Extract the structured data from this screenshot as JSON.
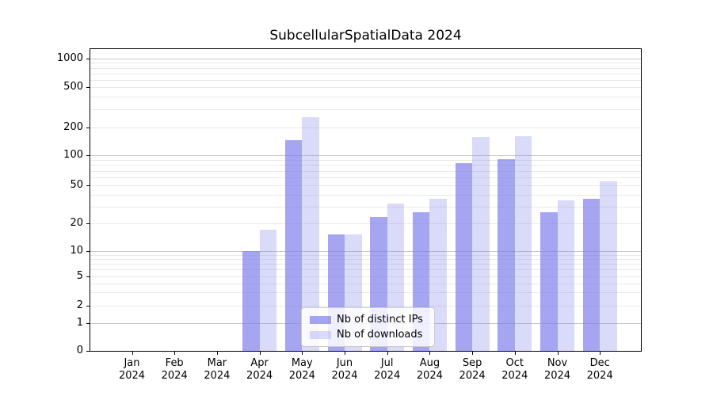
{
  "title": "SubcellularSpatialData 2024",
  "accent_color": "#7a7aeb",
  "chart_data": {
    "type": "bar",
    "title": "SubcellularSpatialData 2024",
    "xlabel": "",
    "ylabel": "",
    "yscale": "symlog",
    "grid": "both-horizontal",
    "legend_position": "lower-center-inside",
    "categories": [
      "Jan 2024",
      "Feb 2024",
      "Mar 2024",
      "Apr 2024",
      "May 2024",
      "Jun 2024",
      "Jul 2024",
      "Aug 2024",
      "Sep 2024",
      "Oct 2024",
      "Nov 2024",
      "Dec 2024"
    ],
    "series": [
      {
        "name": "Nb of distinct IPs",
        "fill": "rgba(122,122,235,0.68)",
        "values": [
          0,
          0,
          0,
          10,
          145,
          15,
          23,
          26,
          84,
          91,
          26,
          36
        ]
      },
      {
        "name": "Nb of downloads",
        "fill": "rgba(122,122,235,0.28)",
        "values": [
          0,
          0,
          0,
          17,
          250,
          15,
          32,
          36,
          157,
          160,
          35,
          55
        ]
      }
    ],
    "y_ticks": [
      {
        "v": 1000,
        "label": "1000"
      },
      {
        "v": 500,
        "label": "500"
      },
      {
        "v": 200,
        "label": "200"
      },
      {
        "v": 100,
        "label": "100"
      },
      {
        "v": 50,
        "label": "50"
      },
      {
        "v": 20,
        "label": "20"
      },
      {
        "v": 10,
        "label": "10"
      },
      {
        "v": 5,
        "label": "5"
      },
      {
        "v": 2,
        "label": "2"
      },
      {
        "v": 1,
        "label": "1"
      },
      {
        "v": 0,
        "label": "0"
      }
    ],
    "y_major_gridlines": [
      1,
      10,
      100,
      1000
    ],
    "y_minor_gridlines": [
      2,
      3,
      4,
      5,
      6,
      7,
      8,
      9,
      20,
      30,
      40,
      50,
      60,
      70,
      80,
      90,
      200,
      300,
      400,
      500,
      600,
      700,
      800,
      900
    ],
    "grid_major_color": "#c6c6c6",
    "grid_minor_color": "#e9e9e9"
  },
  "legend": {
    "items": [
      {
        "label": "Nb of distinct IPs"
      },
      {
        "label": "Nb of downloads"
      }
    ]
  }
}
